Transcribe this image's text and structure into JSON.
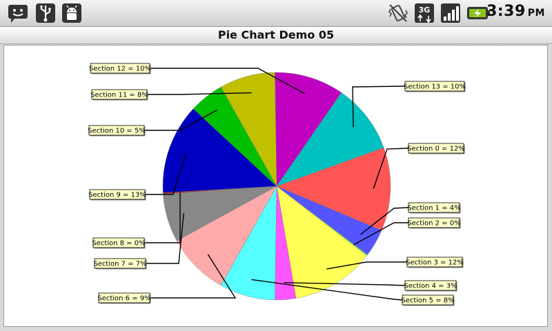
{
  "status_bar": {
    "time": "3:39",
    "ampm": "PM",
    "icons": [
      "chat-notification-icon",
      "usb-icon",
      "android-debug-icon",
      "vibrate-icon",
      "3g-data-icon",
      "signal-icon",
      "battery-charging-icon"
    ],
    "battery_color": "#8ec21a"
  },
  "app": {
    "title": "Pie Chart Demo 05"
  },
  "chart_data": {
    "type": "pie",
    "slices": [
      {
        "name": "Section 0",
        "value": 12,
        "label": "Section 0 = 12%",
        "color": "#ff5555"
      },
      {
        "name": "Section 1",
        "value": 4,
        "label": "Section 1 = 4%",
        "color": "#5555ff"
      },
      {
        "name": "Section 2",
        "value": 0,
        "label": "Section 2 = 0%",
        "color": "#55ff55"
      },
      {
        "name": "Section 3",
        "value": 12,
        "label": "Section 3 = 12%",
        "color": "#ffff55"
      },
      {
        "name": "Section 4",
        "value": 3,
        "label": "Section 4 = 3%",
        "color": "#ff55ff"
      },
      {
        "name": "Section 5",
        "value": 8,
        "label": "Section 5 = 8%",
        "color": "#55ffff"
      },
      {
        "name": "Section 6",
        "value": 9,
        "label": "Section 6 = 9%",
        "color": "#ffaaaa"
      },
      {
        "name": "Section 7",
        "value": 7,
        "label": "Section 7 = 7%",
        "color": "#888888"
      },
      {
        "name": "Section 8",
        "value": 0,
        "label": "Section 8 = 0%",
        "color": "#c00000"
      },
      {
        "name": "Section 9",
        "value": 13,
        "label": "Section 9 = 13%",
        "color": "#0000c0"
      },
      {
        "name": "Section 10",
        "value": 5,
        "label": "Section 10 = 5%",
        "color": "#00c000"
      },
      {
        "name": "Section 11",
        "value": 8,
        "label": "Section 11 = 8%",
        "color": "#c0c000"
      },
      {
        "name": "Section 12",
        "value": 10,
        "label": "Section 12 = 10%",
        "color": "#c000c0"
      },
      {
        "name": "Section 13",
        "value": 10,
        "label": "Section 13 = 10%",
        "color": "#00c0c0"
      }
    ],
    "label_box_color": "#ffffc8"
  }
}
